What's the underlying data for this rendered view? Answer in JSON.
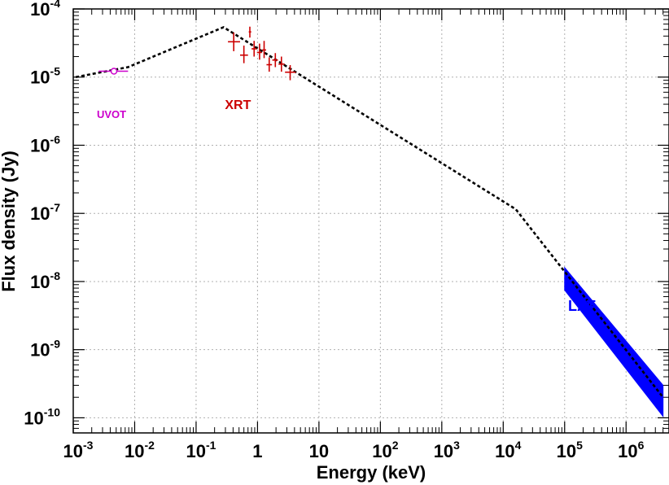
{
  "chart_data": {
    "type": "scatter",
    "xscale": "log",
    "yscale": "log",
    "xlabel": "Energy (keV)",
    "ylabel": "Flux density (Jy)",
    "xlim": [
      0.001,
      5000000
    ],
    "ylim": [
      6e-11,
      0.0001
    ],
    "grid": true,
    "x_ticks": [
      {
        "value": 0.001,
        "label_base": "10",
        "label_exp": "-3"
      },
      {
        "value": 0.01,
        "label_base": "10",
        "label_exp": "-2"
      },
      {
        "value": 0.1,
        "label_base": "10",
        "label_exp": "-1"
      },
      {
        "value": 1,
        "label_base": "1",
        "label_exp": ""
      },
      {
        "value": 10,
        "label_base": "10",
        "label_exp": ""
      },
      {
        "value": 100,
        "label_base": "10",
        "label_exp": "2"
      },
      {
        "value": 1000,
        "label_base": "10",
        "label_exp": "3"
      },
      {
        "value": 10000,
        "label_base": "10",
        "label_exp": "4"
      },
      {
        "value": 100000,
        "label_base": "10",
        "label_exp": "5"
      },
      {
        "value": 1000000,
        "label_base": "10",
        "label_exp": "6"
      }
    ],
    "y_ticks": [
      {
        "value": 1e-10,
        "label_base": "10",
        "label_exp": "-10"
      },
      {
        "value": 1e-09,
        "label_base": "10",
        "label_exp": "-9"
      },
      {
        "value": 1e-08,
        "label_base": "10",
        "label_exp": "-8"
      },
      {
        "value": 1e-07,
        "label_base": "10",
        "label_exp": "-7"
      },
      {
        "value": 1e-06,
        "label_base": "10",
        "label_exp": "-6"
      },
      {
        "value": 1e-05,
        "label_base": "10",
        "label_exp": "-5"
      },
      {
        "value": 0.0001,
        "label_base": "10",
        "label_exp": "-4"
      }
    ],
    "series": [
      {
        "name": "model",
        "kind": "line",
        "style": "dotted",
        "color": "#000000",
        "x": [
          0.0011,
          0.0078,
          0.28,
          16000,
          4000000
        ],
        "y": [
          1e-05,
          1.4e-05,
          5.4e-05,
          1.15e-07,
          2e-10
        ]
      },
      {
        "name": "UVOT",
        "kind": "points",
        "color": "#cc00cc",
        "marker": "open-circle",
        "points": [
          {
            "x": 0.0046,
            "y": 1.22e-05,
            "xlo": 0.0026,
            "xhi": 0.0078,
            "ylo": 1.12e-05,
            "yhi": 1.33e-05
          }
        ]
      },
      {
        "name": "XRT",
        "kind": "points",
        "color": "#cc0000",
        "marker": "none",
        "points": [
          {
            "x": 0.41,
            "y": 3.3e-05,
            "xlo": 0.33,
            "xhi": 0.52,
            "ylo": 2.4e-05,
            "yhi": 4.5e-05
          },
          {
            "x": 0.6,
            "y": 2.1e-05,
            "xlo": 0.52,
            "xhi": 0.7,
            "ylo": 1.6e-05,
            "yhi": 2.9e-05
          },
          {
            "x": 0.75,
            "y": 4.6e-05,
            "xlo": 0.72,
            "xhi": 0.79,
            "ylo": 3.8e-05,
            "yhi": 5.5e-05
          },
          {
            "x": 0.88,
            "y": 2.6e-05,
            "xlo": 0.8,
            "xhi": 0.97,
            "ylo": 2e-05,
            "yhi": 3.4e-05
          },
          {
            "x": 1.08,
            "y": 2.3e-05,
            "xlo": 0.98,
            "xhi": 1.18,
            "ylo": 1.8e-05,
            "yhi": 3.1e-05
          },
          {
            "x": 1.28,
            "y": 2.5e-05,
            "xlo": 1.19,
            "xhi": 1.38,
            "ylo": 1.9e-05,
            "yhi": 3.4e-05
          },
          {
            "x": 1.55,
            "y": 1.52e-05,
            "xlo": 1.4,
            "xhi": 1.72,
            "ylo": 1.2e-05,
            "yhi": 1.95e-05
          },
          {
            "x": 1.95,
            "y": 1.78e-05,
            "xlo": 1.74,
            "xhi": 2.15,
            "ylo": 1.4e-05,
            "yhi": 2.25e-05
          },
          {
            "x": 2.45,
            "y": 1.55e-05,
            "xlo": 2.2,
            "xhi": 2.75,
            "ylo": 1.2e-05,
            "yhi": 2e-05
          },
          {
            "x": 3.4,
            "y": 1.18e-05,
            "xlo": 2.8,
            "xhi": 4.2,
            "ylo": 9e-06,
            "yhi": 1.5e-05
          }
        ]
      },
      {
        "name": "LAT",
        "kind": "band",
        "color": "#0000ff",
        "x": [
          100000,
          4000000
        ],
        "y_low": [
          7.5e-09,
          1.05e-10
        ],
        "y_high": [
          1.6e-08,
          3e-10
        ]
      }
    ],
    "annotations": [
      {
        "text": "UVOT",
        "color": "#cc00cc",
        "x": 0.0042,
        "y": 2.5e-06,
        "size": 13
      },
      {
        "text": "XRT",
        "color": "#cc0000",
        "x": 0.48,
        "y": 3.4e-06,
        "size": 16
      },
      {
        "text": "LAT",
        "color": "#0000ff",
        "x": 190000,
        "y": 3.7e-09,
        "size": 18
      }
    ]
  }
}
